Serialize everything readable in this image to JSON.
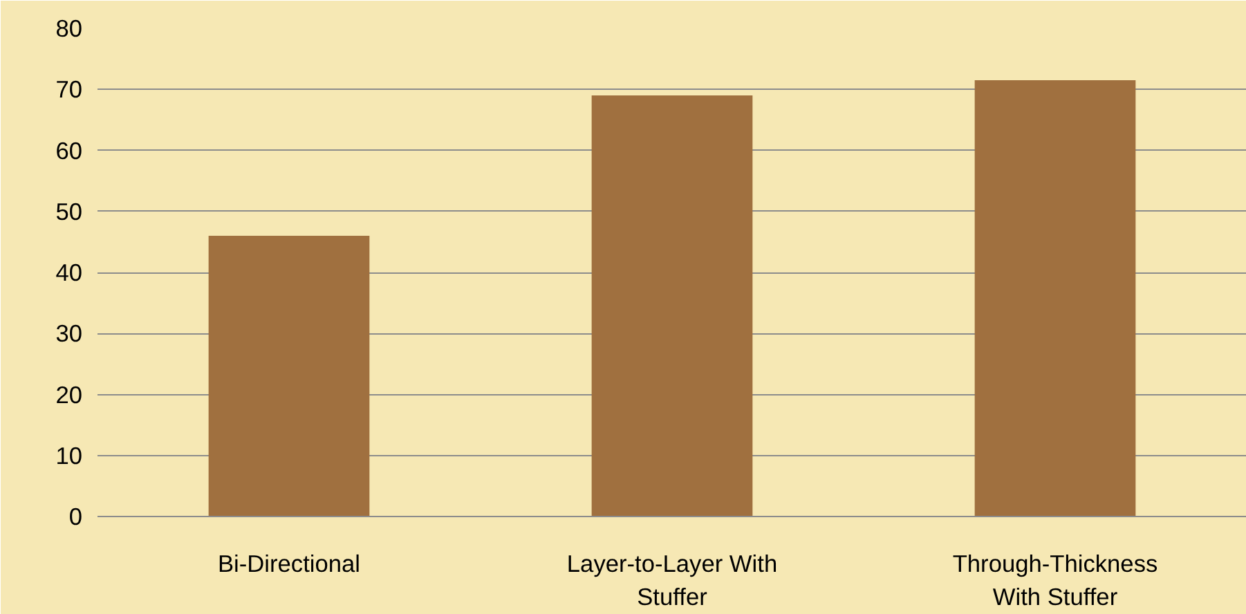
{
  "chart_data": {
    "type": "bar",
    "categories": [
      "Bi-Directional",
      "Layer-to-Layer With Stuffer",
      "Through-Thickness With Stuffer"
    ],
    "values": [
      46,
      69,
      71.5
    ],
    "color": "#a0703f",
    "ylim": [
      0,
      80
    ],
    "yticks": [
      0,
      10,
      20,
      30,
      40,
      50,
      60,
      70,
      80
    ],
    "grid": "y"
  }
}
